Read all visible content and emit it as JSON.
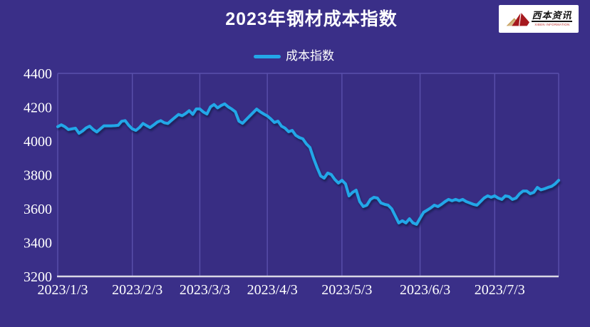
{
  "header": {
    "title": "2023年钢材成本指数"
  },
  "logo": {
    "brand_cn": "西本资讯",
    "brand_en": "XIBEN INFORMATION",
    "icon": "mountain-icon",
    "peak_color_main": "#A6191E",
    "peak_color_secondary": "#C7A05C"
  },
  "legend": {
    "label": "成本指数"
  },
  "colors": {
    "background": "#3A2F88",
    "plot_fill": "#382D83",
    "grid": "#5A50AC",
    "axis": "#D9D7E4",
    "line": "#23A7E8",
    "line_shadow": "#141A52",
    "text": "#FFFFFF"
  },
  "chart_data": {
    "type": "line",
    "title": "2023年钢材成本指数",
    "legend_position": "top-center",
    "grid": "vertical-only",
    "ylim": [
      3200,
      4400
    ],
    "y_ticks": [
      3200,
      3400,
      3600,
      3800,
      4000,
      4200,
      4400
    ],
    "x_tick_labels": [
      "2023/1/3",
      "2023/2/3",
      "2023/3/3",
      "2023/4/3",
      "2023/5/3",
      "2023/6/3",
      "2023/7/3"
    ],
    "x_tick_indices": [
      0,
      21,
      40,
      59,
      80,
      102,
      123
    ],
    "series": [
      {
        "name": "成本指数",
        "values": [
          4085,
          4096,
          4085,
          4068,
          4072,
          4076,
          4046,
          4060,
          4078,
          4088,
          4068,
          4054,
          4072,
          4090,
          4090,
          4090,
          4091,
          4093,
          4117,
          4121,
          4093,
          4072,
          4063,
          4080,
          4104,
          4092,
          4080,
          4095,
          4112,
          4121,
          4108,
          4104,
          4122,
          4140,
          4157,
          4150,
          4163,
          4180,
          4158,
          4190,
          4190,
          4172,
          4160,
          4202,
          4216,
          4196,
          4210,
          4220,
          4202,
          4189,
          4173,
          4118,
          4105,
          4126,
          4147,
          4168,
          4189,
          4173,
          4160,
          4148,
          4131,
          4110,
          4118,
          4088,
          4076,
          4055,
          4063,
          4034,
          4021,
          4013,
          3983,
          3962,
          3899,
          3844,
          3794,
          3781,
          3811,
          3802,
          3773,
          3752,
          3768,
          3747,
          3676,
          3697,
          3710,
          3642,
          3613,
          3621,
          3655,
          3668,
          3663,
          3634,
          3626,
          3621,
          3600,
          3558,
          3516,
          3529,
          3516,
          3541,
          3516,
          3508,
          3545,
          3579,
          3592,
          3605,
          3621,
          3613,
          3626,
          3642,
          3655,
          3647,
          3655,
          3647,
          3655,
          3642,
          3634,
          3626,
          3621,
          3642,
          3663,
          3676,
          3668,
          3676,
          3663,
          3655,
          3676,
          3672,
          3655,
          3663,
          3689,
          3705,
          3705,
          3689,
          3697,
          3726,
          3712,
          3718,
          3726,
          3732,
          3747,
          3768
        ]
      }
    ]
  }
}
